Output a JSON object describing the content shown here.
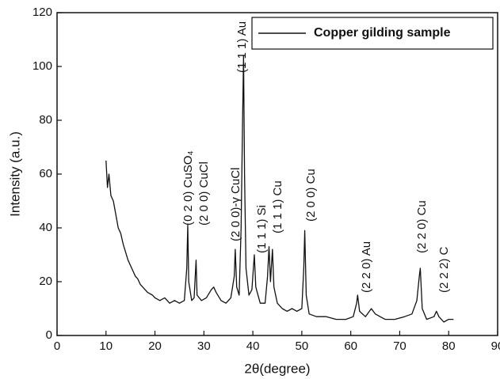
{
  "chart_data": {
    "type": "line",
    "xlabel": "2θ(degree)",
    "ylabel": "Intensity (a.u.)",
    "xlim": [
      0,
      90
    ],
    "xticks": [
      0,
      10,
      20,
      30,
      40,
      50,
      60,
      70,
      80,
      90
    ],
    "ylim": [
      0,
      120
    ],
    "yticks": [
      0,
      20,
      40,
      60,
      80,
      100,
      120
    ],
    "legend": "upper right",
    "x": [
      10.0,
      10.3,
      10.6,
      11.0,
      11.5,
      12.0,
      12.5,
      13.0,
      13.5,
      14.0,
      14.5,
      15.0,
      15.5,
      16.0,
      16.5,
      17.0,
      17.5,
      18.0,
      18.5,
      19.0,
      19.5,
      20.0,
      21.0,
      22.0,
      23.0,
      24.0,
      25.0,
      26.0,
      26.5,
      26.7,
      26.9,
      27.5,
      28.0,
      28.4,
      28.6,
      29.5,
      30.5,
      31.5,
      32.0,
      32.5,
      33.5,
      34.5,
      35.5,
      36.2,
      36.4,
      36.7,
      37.2,
      37.6,
      37.9,
      38.1,
      38.3,
      38.6,
      39.2,
      39.8,
      40.3,
      40.6,
      41.5,
      42.5,
      43.0,
      43.3,
      43.6,
      44.0,
      44.3,
      45.0,
      46.0,
      47.0,
      48.0,
      49.0,
      50.0,
      50.4,
      50.6,
      50.9,
      51.5,
      53.0,
      55.0,
      57.0,
      59.0,
      60.5,
      61.2,
      61.4,
      61.8,
      63.0,
      64.2,
      65.0,
      67.0,
      69.0,
      71.0,
      72.5,
      73.5,
      74.0,
      74.2,
      74.6,
      75.5,
      77.0,
      77.5,
      78.0,
      79.0,
      80.0,
      81.0
    ],
    "series": [
      {
        "name": "Copper gilding sample",
        "color": "#111111",
        "values": [
          65,
          55,
          60,
          52,
          50,
          45,
          40,
          38,
          34,
          31,
          28,
          26,
          24,
          22,
          21,
          19,
          18,
          17,
          16,
          15.5,
          15,
          14,
          13,
          14,
          12,
          13,
          12,
          13,
          25,
          41,
          20,
          13,
          14,
          28,
          15,
          13,
          14,
          17,
          18,
          16,
          13,
          12,
          14,
          22,
          32,
          18,
          15,
          40,
          80,
          104,
          60,
          25,
          15,
          17,
          30,
          18,
          12,
          12,
          22,
          33,
          20,
          32,
          18,
          12,
          10,
          9,
          10,
          9,
          10,
          25,
          39,
          15,
          8,
          7,
          7,
          6,
          6,
          7,
          12,
          15,
          9,
          7,
          10,
          8,
          6,
          6,
          7,
          8,
          13,
          22,
          25,
          10,
          6,
          7,
          9,
          7,
          5,
          6,
          6
        ]
      }
    ],
    "annotations": [
      "(0 2 0) CuSO₄",
      "(2 0 0) CuCl",
      "(2 0 0)-γ CuCl",
      "(1 1 1) Au",
      "(1 1 1) Si",
      "(1 1 1) Cu",
      "(2 0 0) Cu",
      "(2 2 0) Au",
      "(2 2 0) Cu",
      "(2 2 2) C"
    ]
  }
}
